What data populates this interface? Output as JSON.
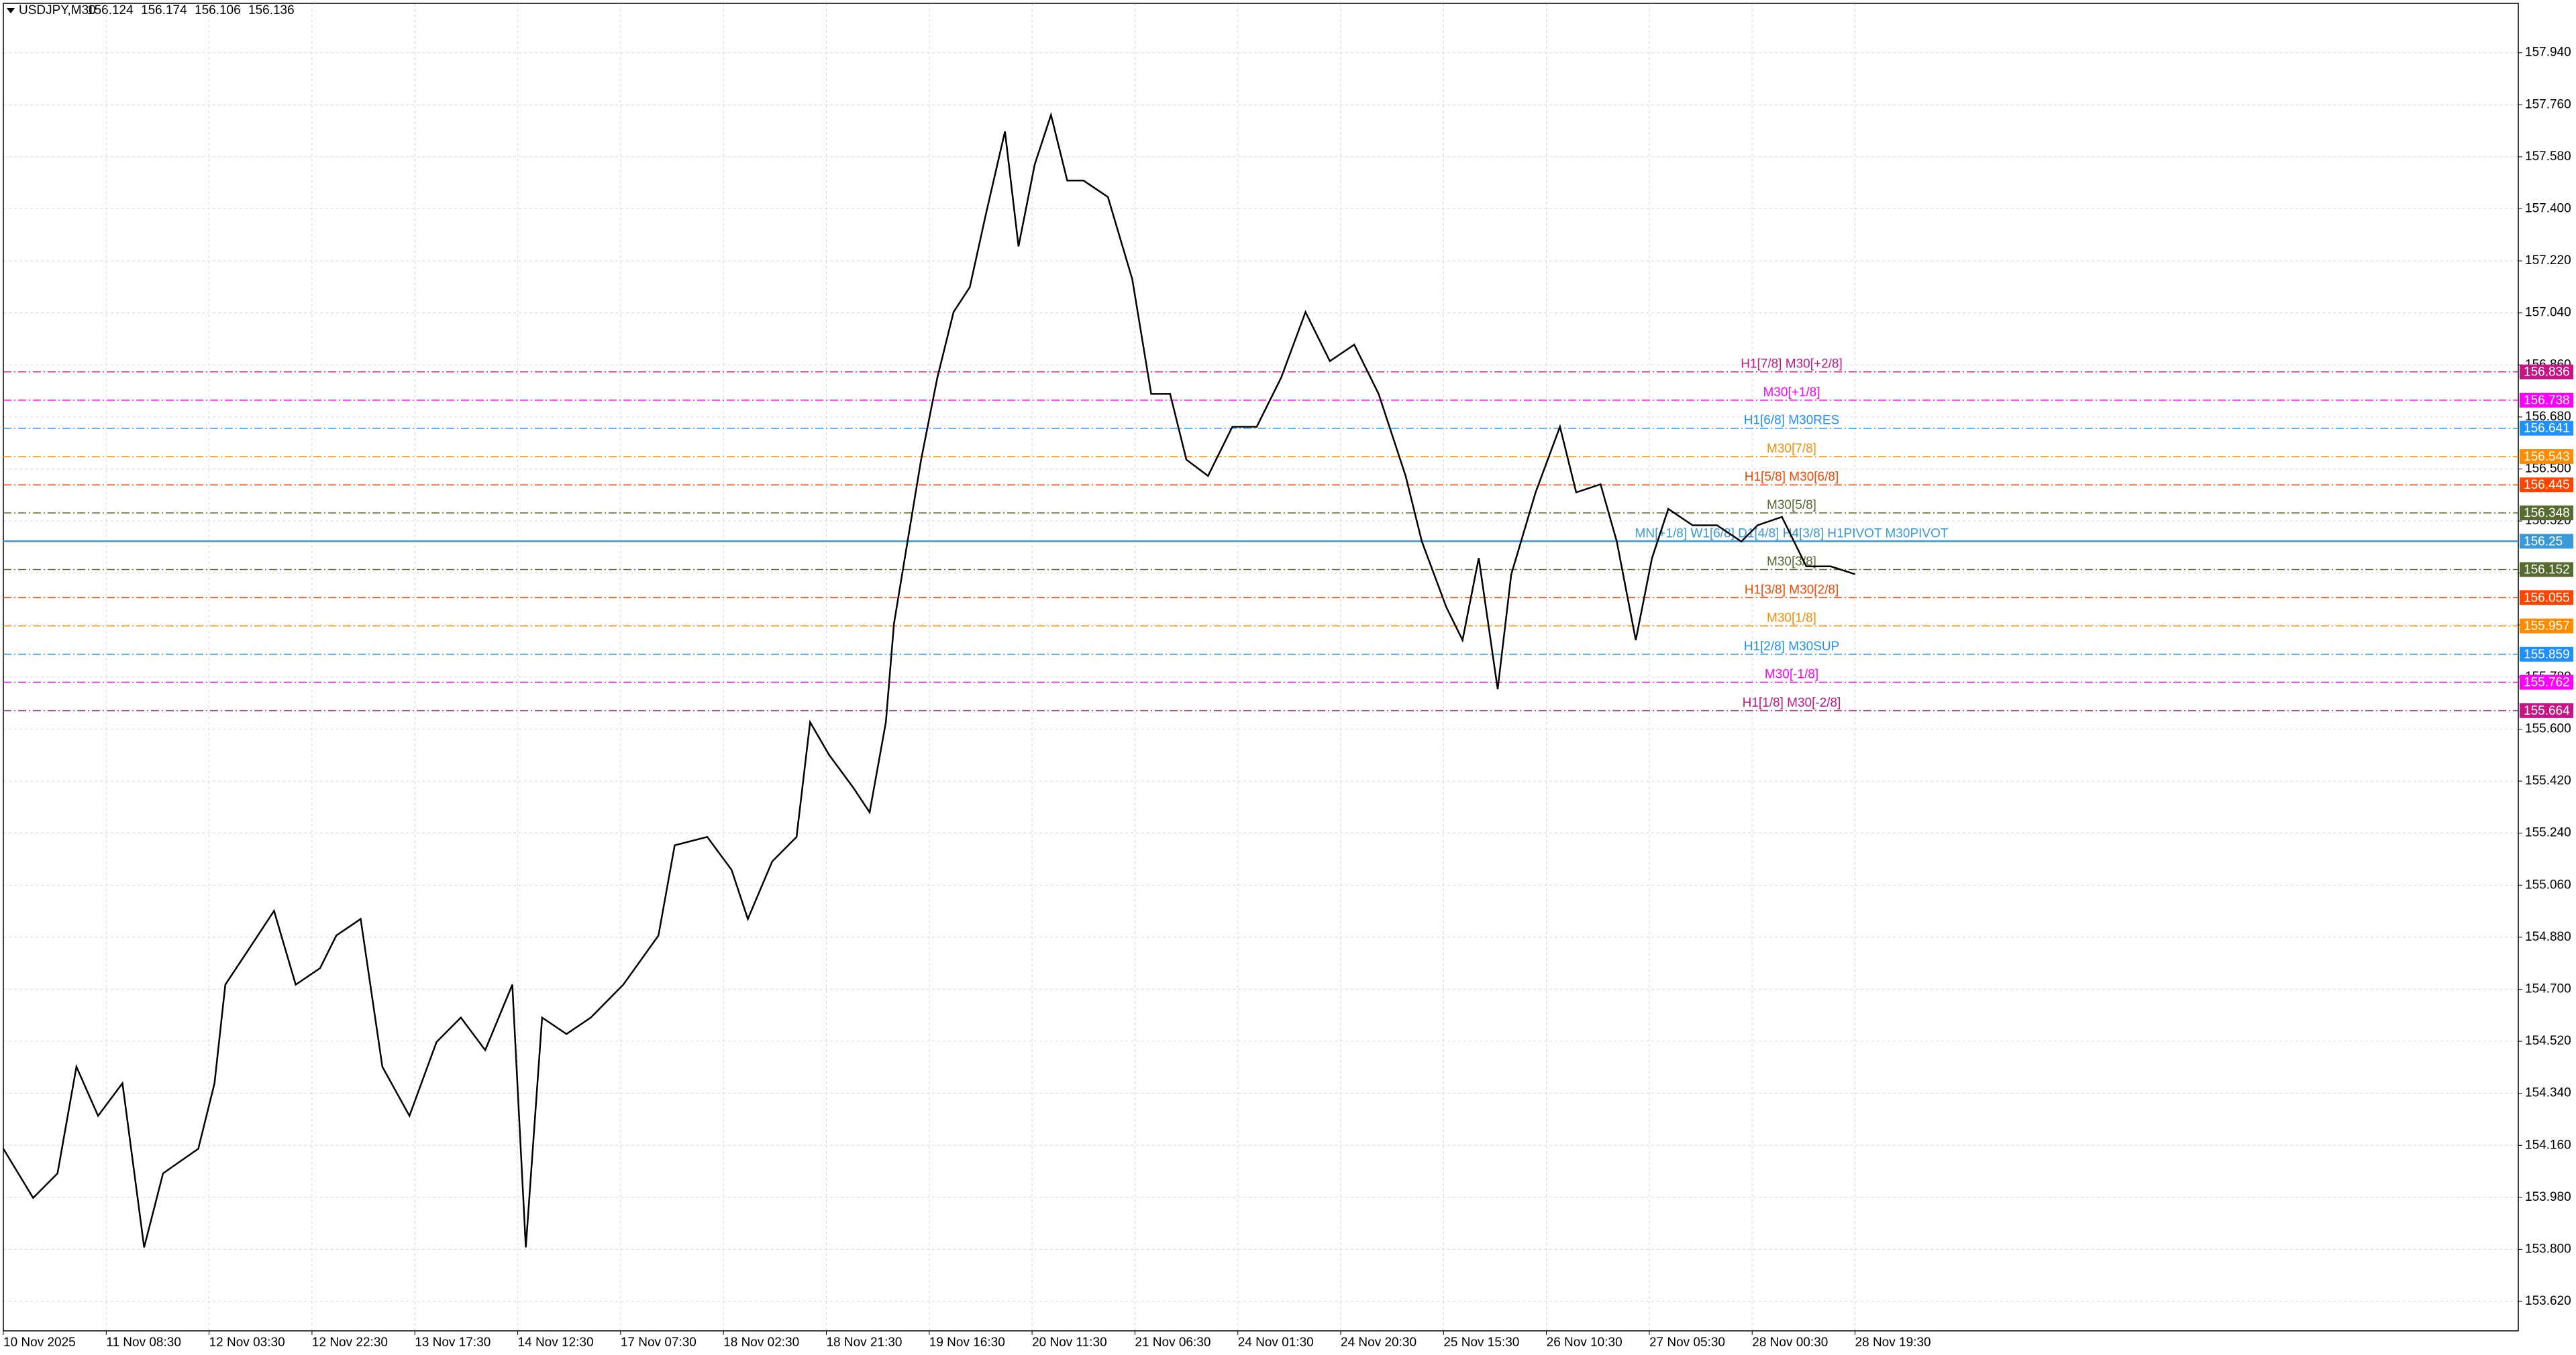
{
  "header": {
    "symbol": "USDJPY,M30",
    "quote": [
      156.124,
      156.174,
      156.106,
      156.136
    ]
  },
  "chart_data": {
    "type": "line",
    "grid": true,
    "xlim": [
      0,
      929
    ],
    "ylim": [
      153.518,
      158.111
    ],
    "xticks": [
      {
        "value": 0,
        "label": "10 Nov 2025"
      },
      {
        "value": 38,
        "label": "11 Nov 08:30"
      },
      {
        "value": 76,
        "label": "12 Nov 03:30"
      },
      {
        "value": 114,
        "label": "12 Nov 22:30"
      },
      {
        "value": 152,
        "label": "13 Nov 17:30"
      },
      {
        "value": 190,
        "label": "14 Nov 12:30"
      },
      {
        "value": 228,
        "label": "17 Nov 07:30"
      },
      {
        "value": 266,
        "label": "18 Nov 02:30"
      },
      {
        "value": 304,
        "label": "18 Nov 21:30"
      },
      {
        "value": 342,
        "label": "19 Nov 16:30"
      },
      {
        "value": 380,
        "label": "20 Nov 11:30"
      },
      {
        "value": 418,
        "label": "21 Nov 06:30"
      },
      {
        "value": 456,
        "label": "24 Nov 01:30"
      },
      {
        "value": 494,
        "label": "24 Nov 20:30"
      },
      {
        "value": 532,
        "label": "25 Nov 15:30"
      },
      {
        "value": 570,
        "label": "26 Nov 10:30"
      },
      {
        "value": 608,
        "label": "27 Nov 05:30"
      },
      {
        "value": 646,
        "label": "28 Nov 00:30"
      },
      {
        "value": 684,
        "label": "28 Nov 19:30"
      }
    ],
    "yticks": [
      {
        "value": 153.62,
        "label": "153.620"
      },
      {
        "value": 153.8,
        "label": "153.800"
      },
      {
        "value": 153.98,
        "label": "153.980"
      },
      {
        "value": 154.16,
        "label": "154.160"
      },
      {
        "value": 154.34,
        "label": "154.340"
      },
      {
        "value": 154.52,
        "label": "154.520"
      },
      {
        "value": 154.7,
        "label": "154.700"
      },
      {
        "value": 154.88,
        "label": "154.880"
      },
      {
        "value": 155.06,
        "label": "155.060"
      },
      {
        "value": 155.24,
        "label": "155.240"
      },
      {
        "value": 155.42,
        "label": "155.420"
      },
      {
        "value": 155.6,
        "label": "155.600"
      },
      {
        "value": 155.78,
        "label": "155.780"
      },
      {
        "value": 155.96,
        "label": "155.960"
      },
      {
        "value": 156.14,
        "label": "156.140"
      },
      {
        "value": 156.32,
        "label": "156.320"
      },
      {
        "value": 156.5,
        "label": "156.500"
      },
      {
        "value": 156.68,
        "label": "156.680"
      },
      {
        "value": 156.86,
        "label": "156.860"
      },
      {
        "value": 157.04,
        "label": "157.040"
      },
      {
        "value": 157.22,
        "label": "157.220"
      },
      {
        "value": 157.4,
        "label": "157.400"
      },
      {
        "value": 157.58,
        "label": "157.580"
      },
      {
        "value": 157.76,
        "label": "157.760"
      },
      {
        "value": 157.94,
        "label": "157.940"
      }
    ],
    "series": [
      {
        "name": "USDJPY,M30",
        "color": "#000000",
        "x": [
          0,
          11,
          20,
          27,
          35,
          44,
          52,
          59,
          72,
          78,
          82,
          90,
          100,
          108,
          117,
          123,
          132,
          140,
          150,
          160,
          169,
          178,
          188,
          193,
          199,
          208,
          217,
          229,
          242,
          248,
          260,
          269,
          275,
          284,
          293,
          298,
          305,
          314,
          320,
          326,
          329,
          334,
          339,
          345,
          351,
          357,
          363,
          370,
          375,
          381,
          387,
          393,
          399,
          408,
          417,
          424,
          431,
          437,
          445,
          454,
          463,
          472,
          481,
          490,
          499,
          508,
          518,
          524,
          533,
          539,
          545,
          552,
          557,
          566,
          575,
          581,
          590,
          596,
          603,
          609,
          615,
          624,
          633,
          642,
          648,
          657,
          666,
          675,
          684
        ],
        "values": [
          154.148,
          153.978,
          154.063,
          154.432,
          154.262,
          154.375,
          153.807,
          154.063,
          154.148,
          154.375,
          154.716,
          154.829,
          154.971,
          154.716,
          154.773,
          154.886,
          154.943,
          154.432,
          154.262,
          154.517,
          154.602,
          154.489,
          154.716,
          153.807,
          154.602,
          154.545,
          154.602,
          154.716,
          154.886,
          155.198,
          155.227,
          155.113,
          154.943,
          155.142,
          155.227,
          155.624,
          155.511,
          155.397,
          155.312,
          155.624,
          155.965,
          156.249,
          156.532,
          156.816,
          157.043,
          157.129,
          157.384,
          157.668,
          157.27,
          157.554,
          157.725,
          157.498,
          157.498,
          157.441,
          157.157,
          156.76,
          156.76,
          156.532,
          156.476,
          156.646,
          156.646,
          156.816,
          157.043,
          156.873,
          156.93,
          156.76,
          156.476,
          156.249,
          156.022,
          155.908,
          156.192,
          155.738,
          156.135,
          156.419,
          156.646,
          156.419,
          156.447,
          156.249,
          155.908,
          156.192,
          156.362,
          156.305,
          156.305,
          156.249,
          156.305,
          156.334,
          156.163,
          156.163,
          156.136
        ]
      }
    ],
    "levels": [
      {
        "label": "H1[7/8] M30[+2/8]",
        "value": 156.836,
        "color": "#c71585"
      },
      {
        "label": "M30[+1/8]",
        "value": 156.738,
        "color": "#ff00ff"
      },
      {
        "label": "H1[6/8] M30RES",
        "value": 156.641,
        "color": "#1e90ff"
      },
      {
        "label": "M30[7/8]",
        "value": 156.543,
        "color": "#ff8c00"
      },
      {
        "label": "H1[5/8] M30[6/8]",
        "value": 156.445,
        "color": "#ff4500"
      },
      {
        "label": "M30[5/8]",
        "value": 156.348,
        "color": "#556b2f"
      },
      {
        "label": "MN[+1/8] W1[6/8] D1[4/8] H4[3/8] H1PIVOT M30PIVOT",
        "value": 156.25,
        "color": "#3a9ad9"
      },
      {
        "label": "M30[3/8]",
        "value": 156.152,
        "color": "#556b2f"
      },
      {
        "label": "H1[3/8] M30[2/8]",
        "value": 156.055,
        "color": "#ff4500"
      },
      {
        "label": "M30[1/8]",
        "value": 155.957,
        "color": "#ff8c00"
      },
      {
        "label": "H1[2/8] M30SUP",
        "value": 155.859,
        "color": "#1e90ff"
      },
      {
        "label": "M30[-1/8]",
        "value": 155.762,
        "color": "#ff00ff"
      },
      {
        "label": "H1[1/8] M30[-2/8]",
        "value": 155.664,
        "color": "#c71585"
      }
    ]
  }
}
